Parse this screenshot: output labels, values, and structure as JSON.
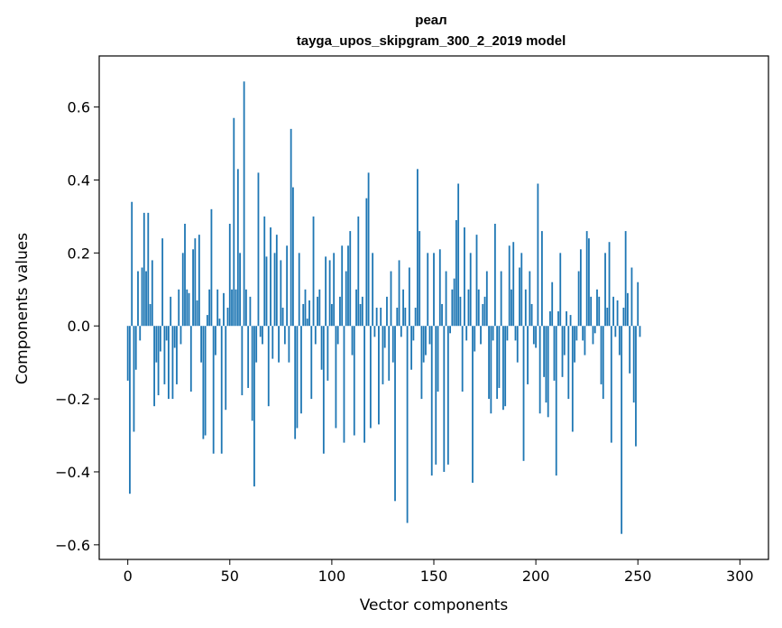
{
  "chart_data": {
    "type": "bar",
    "title": "реал",
    "subtitle": "tayga_upos_skipgram_300_2_2019 model",
    "xlabel": "Vector components",
    "ylabel": "Components values",
    "xlim": [
      -14,
      314
    ],
    "ylim": [
      -0.64,
      0.74
    ],
    "x_ticks": [
      0,
      50,
      100,
      150,
      200,
      250,
      300
    ],
    "x_tick_labels": [
      "0",
      "50",
      "100",
      "150",
      "200",
      "250",
      "300"
    ],
    "y_ticks": [
      -0.6,
      -0.4,
      -0.2,
      0.0,
      0.2,
      0.4,
      0.6
    ],
    "y_tick_labels": [
      "−0.6",
      "−0.4",
      "−0.2",
      "0.0",
      "0.2",
      "0.4",
      "0.6"
    ],
    "grid": false,
    "bar_color": "#1f77b4",
    "series": [
      {
        "values": [
          -0.15,
          -0.46,
          0.34,
          -0.29,
          -0.12,
          0.15,
          -0.04,
          0.16,
          0.31,
          0.15,
          0.31,
          0.06,
          0.18,
          -0.22,
          -0.1,
          -0.19,
          -0.07,
          0.24,
          -0.16,
          -0.04,
          -0.2,
          0.08,
          -0.2,
          -0.06,
          -0.16,
          0.1,
          -0.05,
          0.2,
          0.28,
          0.1,
          0.09,
          -0.18,
          0.21,
          0.24,
          0.07,
          0.25,
          -0.1,
          -0.31,
          -0.3,
          0.03,
          0.1,
          0.32,
          -0.35,
          -0.08,
          0.1,
          0.02,
          -0.35,
          0.09,
          -0.23,
          0.05,
          0.28,
          0.1,
          0.57,
          0.1,
          0.43,
          0.2,
          -0.19,
          0.67,
          0.1,
          -0.17,
          0.08,
          -0.26,
          -0.44,
          -0.1,
          0.42,
          -0.03,
          -0.05,
          0.3,
          0.19,
          -0.22,
          0.27,
          -0.09,
          0.2,
          0.25,
          -0.1,
          0.18,
          0.05,
          -0.05,
          0.22,
          -0.1,
          0.54,
          0.38,
          -0.31,
          -0.28,
          0.2,
          -0.24,
          0.06,
          0.1,
          0.02,
          0.07,
          -0.2,
          0.3,
          -0.05,
          0.08,
          0.1,
          -0.12,
          -0.35,
          0.19,
          -0.15,
          0.18,
          0.06,
          0.2,
          -0.28,
          -0.05,
          0.08,
          0.22,
          -0.32,
          0.15,
          0.22,
          0.26,
          -0.08,
          -0.3,
          0.1,
          0.3,
          0.06,
          0.08,
          -0.32,
          0.35,
          0.42,
          -0.28,
          0.2,
          -0.03,
          0.05,
          -0.27,
          0.05,
          -0.16,
          -0.06,
          0.08,
          -0.15,
          0.15,
          -0.1,
          -0.48,
          0.05,
          0.18,
          -0.03,
          0.1,
          0.05,
          -0.54,
          0.16,
          -0.12,
          -0.04,
          0.05,
          0.43,
          0.26,
          -0.2,
          -0.1,
          -0.08,
          0.2,
          -0.05,
          -0.41,
          0.2,
          -0.38,
          -0.18,
          0.21,
          0.06,
          -0.4,
          0.15,
          -0.38,
          -0.02,
          0.1,
          0.13,
          0.29,
          0.39,
          0.08,
          -0.18,
          0.27,
          -0.04,
          0.1,
          0.2,
          -0.43,
          -0.07,
          0.25,
          0.1,
          -0.05,
          0.06,
          0.08,
          0.15,
          -0.2,
          -0.24,
          -0.04,
          0.28,
          -0.2,
          -0.17,
          0.15,
          -0.23,
          -0.22,
          -0.04,
          0.22,
          0.1,
          0.23,
          -0.04,
          -0.1,
          0.16,
          0.2,
          -0.37,
          0.1,
          -0.16,
          0.15,
          0.06,
          -0.05,
          -0.06,
          0.39,
          -0.24,
          0.26,
          -0.14,
          -0.21,
          -0.25,
          0.04,
          0.12,
          -0.15,
          -0.41,
          0.04,
          0.2,
          -0.14,
          -0.08,
          0.04,
          -0.2,
          0.03,
          -0.29,
          -0.1,
          -0.04,
          0.15,
          0.21,
          -0.04,
          -0.08,
          0.26,
          0.24,
          0.08,
          -0.05,
          -0.02,
          0.1,
          0.08,
          -0.16,
          -0.2,
          0.2,
          0.05,
          0.23,
          -0.32,
          0.08,
          -0.03,
          0.07,
          -0.08,
          -0.57,
          0.05,
          0.26,
          0.09,
          -0.13,
          0.16,
          -0.21,
          -0.33,
          0.12,
          -0.03
        ]
      }
    ]
  }
}
